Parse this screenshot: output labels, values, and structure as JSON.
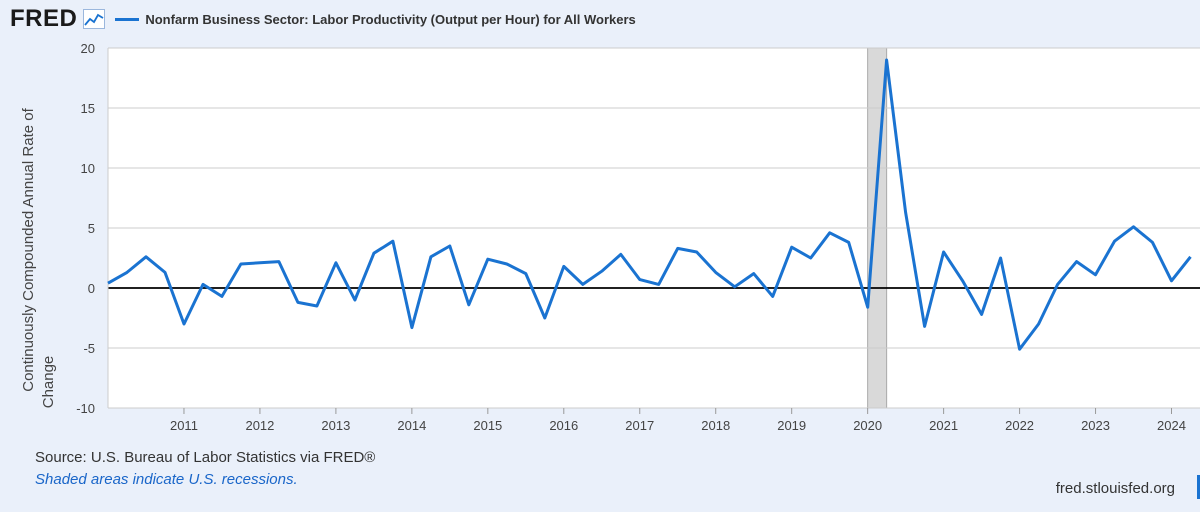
{
  "header": {
    "logo": "FRED",
    "logo_icon": "trend-line-icon",
    "series_title": "Nonfarm Business Sector: Labor Productivity (Output per Hour) for All Workers"
  },
  "footer": {
    "source": "Source: U.S. Bureau of Labor Statistics via FRED®",
    "recession_note": "Shaded areas indicate U.S. recessions.",
    "url": "fred.stlouisfed.org"
  },
  "colors": {
    "series": "#1a73d1",
    "recession": "#d9d9d9",
    "background": "#eaf0fa",
    "plot": "#ffffff"
  },
  "chart_data": {
    "type": "line",
    "ylabel": "Continuously Compounded Annual Rate of Change",
    "ylim": [
      -10,
      20
    ],
    "yticks": [
      -10,
      -5,
      0,
      5,
      10,
      15,
      20
    ],
    "xlim": [
      2010.0,
      2024.375
    ],
    "xticks": [
      2011,
      2012,
      2013,
      2014,
      2015,
      2016,
      2017,
      2018,
      2019,
      2020,
      2021,
      2022,
      2023,
      2024
    ],
    "grid": "horizontal",
    "zero_line": true,
    "recessions": [
      [
        2020.0,
        2020.25
      ]
    ],
    "series": [
      {
        "x": [
          2010.0,
          2010.25,
          2010.5,
          2010.75,
          2011.0,
          2011.25,
          2011.5,
          2011.75,
          2012.0,
          2012.25,
          2012.5,
          2012.75,
          2013.0,
          2013.25,
          2013.5,
          2013.75,
          2014.0,
          2014.25,
          2014.5,
          2014.75,
          2015.0,
          2015.25,
          2015.5,
          2015.75,
          2016.0,
          2016.25,
          2016.5,
          2016.75,
          2017.0,
          2017.25,
          2017.5,
          2017.75,
          2018.0,
          2018.25,
          2018.5,
          2018.75,
          2019.0,
          2019.25,
          2019.5,
          2019.75,
          2020.0,
          2020.25,
          2020.5,
          2020.75,
          2021.0,
          2021.25,
          2021.5,
          2021.75,
          2022.0,
          2022.25,
          2022.5,
          2022.75,
          2023.0,
          2023.25,
          2023.5,
          2023.75,
          2024.0,
          2024.25
        ],
        "values": [
          0.4,
          1.3,
          2.6,
          1.3,
          -3.0,
          0.3,
          -0.7,
          2.0,
          2.1,
          2.2,
          -1.2,
          -1.5,
          2.1,
          -1.0,
          2.9,
          3.9,
          -3.3,
          2.6,
          3.5,
          -1.4,
          2.4,
          2.0,
          1.2,
          -2.5,
          1.8,
          0.3,
          1.4,
          2.8,
          0.7,
          0.3,
          3.3,
          3.0,
          1.3,
          0.1,
          1.2,
          -0.7,
          3.4,
          2.5,
          4.6,
          3.8,
          -1.6,
          19.0,
          6.3,
          -3.2,
          3.0,
          0.6,
          -2.2,
          2.5,
          -5.1,
          -3.0,
          0.3,
          2.2,
          1.1,
          3.9,
          5.1,
          3.8,
          0.6,
          2.6
        ]
      }
    ]
  }
}
